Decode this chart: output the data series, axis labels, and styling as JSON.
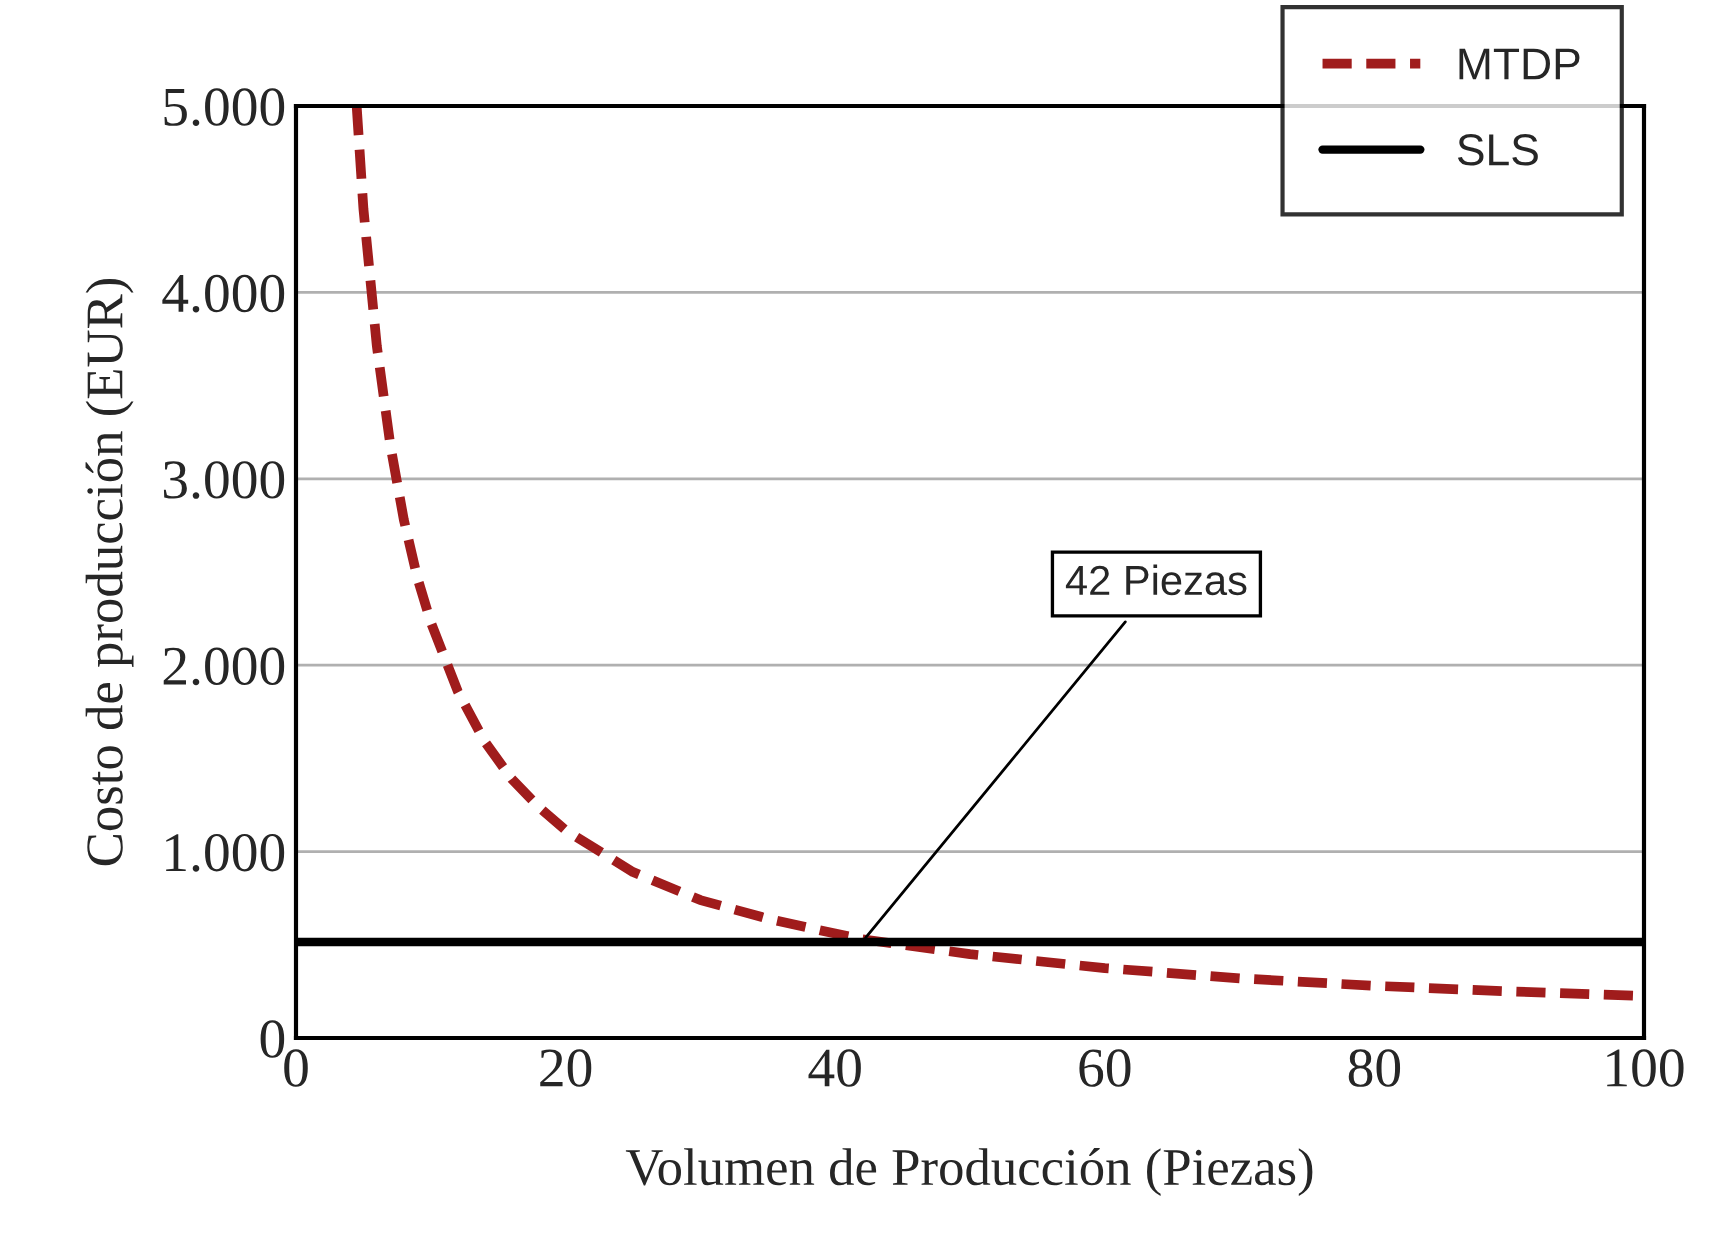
{
  "chart_data": {
    "type": "line",
    "xlabel": "Volumen de Producción (Piezas)",
    "ylabel": "Costo de producción (EUR)",
    "xlim": [
      0,
      100
    ],
    "ylim": [
      0,
      5000
    ],
    "xticks": [
      0,
      20,
      40,
      60,
      80,
      100
    ],
    "yticks": [
      {
        "value": 0,
        "label": "0"
      },
      {
        "value": 1000,
        "label": "1.000"
      },
      {
        "value": 2000,
        "label": "2.000"
      },
      {
        "value": 3000,
        "label": "3.000"
      },
      {
        "value": 4000,
        "label": "4.000"
      },
      {
        "value": 5000,
        "label": "5.000"
      }
    ],
    "grid": "y",
    "legend": "top right",
    "series": [
      {
        "name": "MTDP",
        "color": "#a01c1c",
        "line_style": "dashed",
        "x": [
          4.5,
          5,
          6,
          7,
          8,
          9,
          10,
          12,
          14,
          16,
          18,
          20,
          25,
          30,
          35,
          40,
          42,
          45,
          50,
          60,
          70,
          80,
          90,
          100
        ],
        "values": [
          5000,
          4450,
          3710,
          3180,
          2780,
          2470,
          2230,
          1860,
          1590,
          1390,
          1240,
          1115,
          890,
          740,
          640,
          560,
          530,
          500,
          450,
          375,
          320,
          280,
          250,
          225
        ]
      },
      {
        "name": "SLS",
        "color": "#000000",
        "line_style": "solid",
        "x": [
          0,
          100
        ],
        "values": [
          515,
          515
        ]
      }
    ],
    "annotations": [
      {
        "text": "42 Piezas",
        "x": 42,
        "y": 515
      }
    ]
  }
}
